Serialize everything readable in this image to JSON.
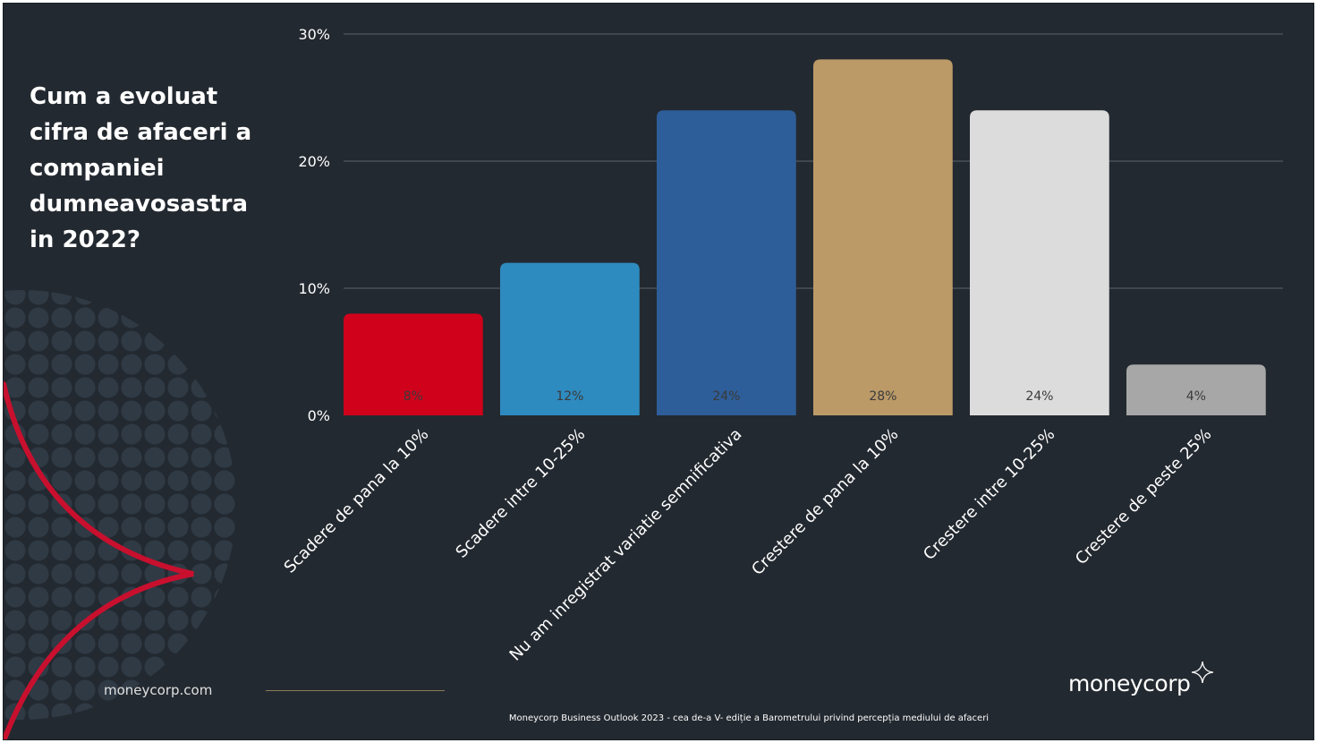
{
  "slide": {
    "question": "Cum a evoluat cifra de afaceri a companiei dumneavosastra in 2022?",
    "footer_url": "moneycorp.com",
    "logo_text": "moneycorp",
    "source_note": "Moneycorp Business Outlook 2023 - cea de-a V- ediție a Barometrului privind percepția mediului de afaceri"
  },
  "colors": {
    "background": "#232930",
    "accent_red": "#c8102e"
  },
  "chart_data": {
    "type": "bar",
    "title": "",
    "xlabel": "",
    "ylabel": "",
    "ylim": [
      0,
      30
    ],
    "yticks": [
      0,
      10,
      20,
      30
    ],
    "ytick_labels": [
      "0%",
      "10%",
      "20%",
      "30%"
    ],
    "grid": true,
    "legend": "none",
    "categories": [
      "Scadere de pana la 10%",
      "Scadere intre 10-25%",
      "Nu am inregistrat variatie semnificativa",
      "Crestere de pana la 10%",
      "Crestere intre 10-25%",
      "Crestere de peste 25%"
    ],
    "values": [
      8,
      12,
      24,
      28,
      24,
      4
    ],
    "value_labels": [
      "8%",
      "12%",
      "24%",
      "28%",
      "24%",
      "4%"
    ],
    "bar_colors": [
      "#d0021b",
      "#2e8bc0",
      "#2e5e99",
      "#bb9a68",
      "#dcdcdc",
      "#a7a7a7"
    ]
  }
}
